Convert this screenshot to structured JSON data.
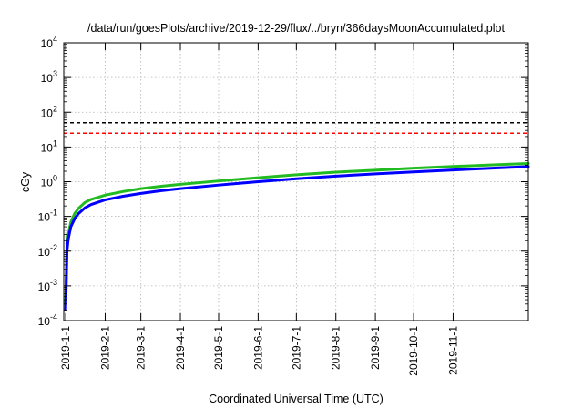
{
  "chart_data": {
    "type": "line",
    "title": "/data/run/goesPlots/archive/2019-12-29/flux/../bryn/366daysMoonAccumulated.plot",
    "xlabel": "Coordinated Universal Time (UTC)",
    "ylabel": "cGy",
    "yscale": "log",
    "ylim_exp": [
      -4,
      4
    ],
    "y_tick_labels": [
      {
        "base": "10",
        "exp": "-4"
      },
      {
        "base": "10",
        "exp": "-3"
      },
      {
        "base": "10",
        "exp": "-2"
      },
      {
        "base": "10",
        "exp": "-1"
      },
      {
        "base": "10",
        "exp": "0"
      },
      {
        "base": "10",
        "exp": "1"
      },
      {
        "base": "10",
        "exp": "2"
      },
      {
        "base": "10",
        "exp": "3"
      },
      {
        "base": "10",
        "exp": "4"
      }
    ],
    "x_range_days": [
      -1.5,
      363
    ],
    "x_ticks": [
      {
        "label": "2019-1-1",
        "day": 0
      },
      {
        "label": "2019-2-1",
        "day": 31
      },
      {
        "label": "2019-3-1",
        "day": 59
      },
      {
        "label": "2019-4-1",
        "day": 90
      },
      {
        "label": "2019-5-1",
        "day": 120
      },
      {
        "label": "2019-6-1",
        "day": 151
      },
      {
        "label": "2019-7-1",
        "day": 181
      },
      {
        "label": "2019-8-1",
        "day": 212
      },
      {
        "label": "2019-9-1",
        "day": 243
      },
      {
        "label": "2019-10-1",
        "day": 273
      },
      {
        "label": "2019-11-1",
        "day": 304
      }
    ],
    "grid": true,
    "reference_lines": [
      {
        "name": "black-threshold",
        "value": 50,
        "color": "#000000",
        "style": "dashed"
      },
      {
        "name": "red-threshold",
        "value": 25,
        "color": "#ff0000",
        "style": "dashed"
      }
    ],
    "series": [
      {
        "name": "green-series",
        "color": "#22bb22",
        "x": [
          0,
          1,
          2,
          4,
          7,
          10,
          15,
          20,
          31,
          45,
          59,
          75,
          90,
          120,
          151,
          181,
          212,
          243,
          273,
          304,
          335,
          363
        ],
        "y": [
          0.0003,
          0.013,
          0.03,
          0.068,
          0.12,
          0.17,
          0.25,
          0.31,
          0.41,
          0.52,
          0.63,
          0.74,
          0.84,
          1.05,
          1.3,
          1.58,
          1.88,
          2.15,
          2.45,
          2.75,
          3.05,
          3.35
        ]
      },
      {
        "name": "blue-series",
        "color": "#0000ff",
        "x": [
          0,
          1,
          2,
          4,
          7,
          10,
          15,
          20,
          31,
          45,
          59,
          75,
          90,
          120,
          151,
          181,
          212,
          243,
          273,
          304,
          335,
          363
        ],
        "y": [
          0.0002,
          0.01,
          0.022,
          0.05,
          0.085,
          0.12,
          0.175,
          0.22,
          0.3,
          0.38,
          0.46,
          0.55,
          0.63,
          0.8,
          1.0,
          1.22,
          1.45,
          1.68,
          1.92,
          2.18,
          2.45,
          2.72
        ]
      }
    ]
  }
}
